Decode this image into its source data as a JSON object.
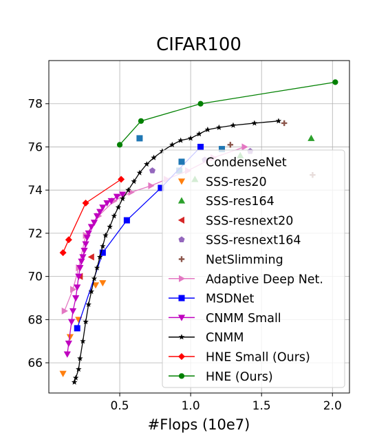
{
  "chart_data": {
    "type": "line",
    "title": "CIFAR100",
    "xlabel": "#Flops (10e7)",
    "ylabel": "",
    "xlim": [
      0.0,
      2.12
    ],
    "ylim": [
      64.6,
      80.0
    ],
    "xticks": [
      0.5,
      1.0,
      1.5,
      2.0
    ],
    "xtick_labels": [
      "0.5",
      "1.0",
      "1.5",
      "2.0"
    ],
    "yticks": [
      66,
      68,
      70,
      72,
      74,
      76,
      78
    ],
    "ytick_labels": [
      "66",
      "68",
      "70",
      "72",
      "74",
      "76",
      "78"
    ],
    "grid": true,
    "legend_placement": "lower-right",
    "series": [
      {
        "name": "CondenseNet",
        "color": "#1f77b4",
        "marker": "square",
        "line": false,
        "x": [
          0.64,
          0.92,
          1.22
        ],
        "y": [
          76.4,
          74.9,
          75.9
        ]
      },
      {
        "name": "SSS-res20",
        "color": "#ff7f0e",
        "marker": "tri-down",
        "line": false,
        "x": [
          0.1,
          0.15,
          0.21,
          0.33,
          0.38
        ],
        "y": [
          65.5,
          67.2,
          68.0,
          69.6,
          69.7
        ]
      },
      {
        "name": "SSS-res164",
        "color": "#2ca02c",
        "marker": "tri-up",
        "line": false,
        "x": [
          1.03,
          1.35,
          1.85
        ],
        "y": [
          74.5,
          75.6,
          76.4
        ]
      },
      {
        "name": "SSS-resnext20",
        "color": "#d62728",
        "marker": "tri-left",
        "line": false,
        "x": [
          0.22,
          0.3
        ],
        "y": [
          70.0,
          70.9
        ]
      },
      {
        "name": "SSS-resnext164",
        "color": "#9467bd",
        "marker": "pentagon",
        "line": false,
        "x": [
          0.73,
          1.1,
          1.42
        ],
        "y": [
          74.9,
          75.4,
          75.8
        ]
      },
      {
        "name": "NetSlimming",
        "color": "#8c564b",
        "marker": "plus",
        "line": false,
        "x": [
          1.28,
          1.66,
          1.86
        ],
        "y": [
          76.1,
          77.1,
          74.7
        ]
      },
      {
        "name": "Adaptive Deep Net.",
        "color": "#e377c2",
        "marker": "tri-right",
        "line": true,
        "x": [
          0.11,
          0.17,
          0.21,
          0.26,
          0.35,
          0.46,
          0.58,
          0.72,
          0.83,
          0.98,
          1.16,
          1.38
        ],
        "y": [
          68.4,
          69.4,
          70.4,
          71.9,
          72.8,
          73.5,
          73.9,
          74.2,
          74.5,
          74.9,
          75.5,
          76.0
        ]
      },
      {
        "name": "MSDNet",
        "color": "#0000ff",
        "marker": "square",
        "line": true,
        "x": [
          0.2,
          0.38,
          0.55,
          0.79,
          1.07
        ],
        "y": [
          67.6,
          71.1,
          72.6,
          74.1,
          76.0
        ]
      },
      {
        "name": "CNMM Small",
        "color": "#bf00bf",
        "marker": "tri-down",
        "line": true,
        "x": [
          0.13,
          0.14,
          0.16,
          0.17,
          0.19,
          0.2,
          0.21,
          0.22,
          0.23,
          0.24,
          0.25,
          0.26,
          0.27,
          0.28,
          0.3,
          0.32,
          0.34,
          0.36,
          0.38,
          0.41,
          0.44,
          0.48,
          0.52
        ],
        "y": [
          66.4,
          66.9,
          67.9,
          68.4,
          69.0,
          69.5,
          70.0,
          70.4,
          70.7,
          70.9,
          71.2,
          71.5,
          71.8,
          72.0,
          72.3,
          72.5,
          72.8,
          73.0,
          73.2,
          73.4,
          73.5,
          73.7,
          73.8
        ]
      },
      {
        "name": "CNMM",
        "color": "#000000",
        "marker": "star",
        "line": true,
        "x": [
          0.18,
          0.19,
          0.21,
          0.22,
          0.24,
          0.26,
          0.28,
          0.3,
          0.32,
          0.34,
          0.36,
          0.38,
          0.4,
          0.43,
          0.46,
          0.49,
          0.52,
          0.56,
          0.6,
          0.64,
          0.69,
          0.74,
          0.8,
          0.87,
          0.93,
          1.0,
          1.06,
          1.12,
          1.2,
          1.3,
          1.45,
          1.62
        ],
        "y": [
          65.1,
          65.3,
          65.7,
          66.2,
          67.0,
          67.9,
          68.7,
          69.3,
          69.9,
          70.4,
          70.9,
          71.4,
          71.9,
          72.3,
          72.8,
          73.2,
          73.6,
          74.0,
          74.4,
          74.8,
          75.2,
          75.5,
          75.8,
          76.1,
          76.3,
          76.4,
          76.6,
          76.8,
          76.9,
          77.0,
          77.1,
          77.2
        ]
      },
      {
        "name": "HNE Small (Ours)",
        "color": "#ff0000",
        "marker": "diamond",
        "line": true,
        "x": [
          0.1,
          0.14,
          0.26,
          0.51
        ],
        "y": [
          71.1,
          71.7,
          73.4,
          74.5
        ]
      },
      {
        "name": "HNE (Ours)",
        "color": "#008000",
        "marker": "circle",
        "line": true,
        "x": [
          0.5,
          0.65,
          1.07,
          2.02
        ],
        "y": [
          76.1,
          77.2,
          78.0,
          79.0
        ]
      }
    ]
  }
}
